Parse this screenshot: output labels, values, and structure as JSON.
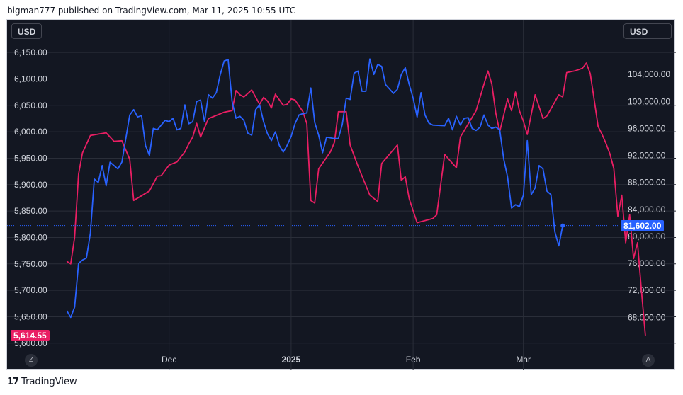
{
  "header": {
    "publisher_line": "bigman777 published on TradingView.com, Mar 11, 2025 10:55 UTC"
  },
  "footer": {
    "logo_mark": "17",
    "brand": "TradingView"
  },
  "left_scale": {
    "currency": "USD",
    "last_price_label": "5,614.55"
  },
  "right_scale": {
    "currency": "USD",
    "last_price_label": "81,602.00"
  },
  "corner_buttons": {
    "left": "Z",
    "right": "A"
  },
  "colors": {
    "background": "#131722",
    "grid": "#2a2e39",
    "axis_text": "#d1d4dc",
    "sp500": "#e91e63",
    "btc": "#2962ff",
    "last_price_line": "#2962ff"
  },
  "chart_data": {
    "type": "line",
    "x_tick_labels": [
      "Dec",
      "2025",
      "Feb",
      "Mar"
    ],
    "x_tick_dates": [
      "2024-12-01",
      "2025-01-01",
      "2025-02-01",
      "2025-03-01"
    ],
    "x_range": [
      "2024-11-01",
      "2025-03-25"
    ],
    "grid": true,
    "left_axis": {
      "ylim": [
        5585,
        6185
      ],
      "ticks": [
        5600,
        5650,
        5700,
        5750,
        5800,
        5850,
        5900,
        5950,
        6000,
        6050,
        6100,
        6150
      ],
      "tick_labels": [
        "5,600.00",
        "5,650.00",
        "5,700.00",
        "5,750.00",
        "5,800.00",
        "5,850.00",
        "5,900.00",
        "5,950.00",
        "6,000.00",
        "6,050.00",
        "6,100.00",
        "6,150.00"
      ]
    },
    "right_axis": {
      "ylim": [
        63000,
        110000
      ],
      "ticks": [
        68000,
        72000,
        76000,
        80000,
        84000,
        88000,
        92000,
        96000,
        100000,
        104000
      ],
      "tick_labels": [
        "68,000.00",
        "72,000.00",
        "76,000.00",
        "80,000.00",
        "84,000.00",
        "88,000.00",
        "92,000.00",
        "96,000.00",
        "100,000.00",
        "104,000.00"
      ]
    },
    "series": [
      {
        "axis": "left",
        "last_value": 5614.55,
        "points": [
          [
            "2024-11-05",
            5755
          ],
          [
            "2024-11-06",
            5750
          ],
          [
            "2024-11-07",
            5800
          ],
          [
            "2024-11-08",
            5920
          ],
          [
            "2024-11-09",
            5960
          ],
          [
            "2024-11-11",
            5993
          ],
          [
            "2024-11-15",
            5998
          ],
          [
            "2024-11-17",
            5982
          ],
          [
            "2024-11-19",
            5983
          ],
          [
            "2024-11-21",
            5948
          ],
          [
            "2024-11-22",
            5870
          ],
          [
            "2024-11-26",
            5888
          ],
          [
            "2024-11-28",
            5916
          ],
          [
            "2024-11-29",
            5917
          ],
          [
            "2024-12-01",
            5937
          ],
          [
            "2024-12-03",
            5943
          ],
          [
            "2024-12-05",
            5962
          ],
          [
            "2024-12-06",
            5977
          ],
          [
            "2024-12-07",
            5990
          ],
          [
            "2024-12-08",
            6016
          ],
          [
            "2024-12-09",
            5990
          ],
          [
            "2024-12-11",
            6025
          ],
          [
            "2024-12-13",
            6031
          ],
          [
            "2024-12-15",
            6037
          ],
          [
            "2024-12-17",
            6040
          ],
          [
            "2024-12-18",
            6078
          ],
          [
            "2024-12-19",
            6070
          ],
          [
            "2024-12-20",
            6066
          ],
          [
            "2024-12-22",
            6079
          ],
          [
            "2024-12-24",
            6052
          ],
          [
            "2024-12-25",
            6065
          ],
          [
            "2024-12-26",
            6058
          ],
          [
            "2024-12-27",
            6045
          ],
          [
            "2024-12-28",
            6071
          ],
          [
            "2024-12-30",
            6050
          ],
          [
            "2024-12-31",
            6052
          ],
          [
            "2025-01-01",
            6062
          ],
          [
            "2025-01-02",
            6060
          ],
          [
            "2025-01-04",
            6038
          ],
          [
            "2025-01-05",
            6015
          ],
          [
            "2025-01-06",
            5870
          ],
          [
            "2025-01-07",
            5865
          ],
          [
            "2025-01-08",
            5930
          ],
          [
            "2025-01-11",
            5962
          ],
          [
            "2025-01-12",
            5980
          ],
          [
            "2025-01-13",
            6038
          ],
          [
            "2025-01-15",
            6038
          ],
          [
            "2025-01-16",
            5975
          ],
          [
            "2025-01-18",
            5935
          ],
          [
            "2025-01-21",
            5880
          ],
          [
            "2025-01-23",
            5868
          ],
          [
            "2025-01-24",
            5940
          ],
          [
            "2025-01-28",
            5975
          ],
          [
            "2025-01-29",
            5908
          ],
          [
            "2025-01-30",
            5915
          ],
          [
            "2025-01-31",
            5873
          ],
          [
            "2025-02-02",
            5828
          ],
          [
            "2025-02-06",
            5836
          ],
          [
            "2025-02-07",
            5843
          ],
          [
            "2025-02-09",
            5957
          ],
          [
            "2025-02-11",
            5940
          ],
          [
            "2025-02-12",
            5932
          ],
          [
            "2025-02-13",
            5990
          ],
          [
            "2025-02-17",
            6040
          ],
          [
            "2025-02-19",
            6090
          ],
          [
            "2025-02-20",
            6115
          ],
          [
            "2025-02-21",
            6090
          ],
          [
            "2025-02-22",
            6035
          ],
          [
            "2025-02-23",
            6000
          ],
          [
            "2025-02-25",
            6062
          ],
          [
            "2025-02-26",
            6040
          ],
          [
            "2025-02-27",
            6075
          ],
          [
            "2025-02-28",
            6040
          ],
          [
            "2025-03-01",
            6020
          ],
          [
            "2025-03-02",
            5995
          ],
          [
            "2025-03-04",
            6070
          ],
          [
            "2025-03-06",
            6025
          ],
          [
            "2025-03-07",
            6030
          ],
          [
            "2025-03-10",
            6070
          ],
          [
            "2025-03-11",
            6066
          ],
          [
            "2025-03-12",
            6112
          ],
          [
            "2025-03-14",
            6115
          ],
          [
            "2025-03-16",
            6120
          ],
          [
            "2025-03-17",
            6130
          ],
          [
            "2025-03-18",
            6110
          ],
          [
            "2025-03-19",
            6060
          ],
          [
            "2025-03-20",
            6010
          ],
          [
            "2025-03-21",
            5995
          ],
          [
            "2025-03-22",
            5978
          ],
          [
            "2025-03-23",
            5958
          ],
          [
            "2025-03-24",
            5930
          ],
          [
            "2025-03-25",
            5840
          ],
          [
            "2025-03-26",
            5880
          ],
          [
            "2025-03-27",
            5790
          ],
          [
            "2025-03-28",
            5843
          ],
          [
            "2025-03-29",
            5760
          ],
          [
            "2025-03-30",
            5790
          ],
          [
            "2025-03-31",
            5700
          ],
          [
            "2025-04-01",
            5614.55
          ]
        ]
      },
      {
        "axis": "right",
        "last_value": 81602,
        "points": [
          [
            "2024-11-05",
            69000
          ],
          [
            "2024-11-06",
            68000
          ],
          [
            "2024-11-07",
            69500
          ],
          [
            "2024-11-08",
            76000
          ],
          [
            "2024-11-09",
            76500
          ],
          [
            "2024-11-10",
            76800
          ],
          [
            "2024-11-11",
            80500
          ],
          [
            "2024-11-12",
            88500
          ],
          [
            "2024-11-13",
            88000
          ],
          [
            "2024-11-14",
            90500
          ],
          [
            "2024-11-15",
            87500
          ],
          [
            "2024-11-16",
            91000
          ],
          [
            "2024-11-18",
            90000
          ],
          [
            "2024-11-19",
            91000
          ],
          [
            "2024-11-20",
            94500
          ],
          [
            "2024-11-21",
            98000
          ],
          [
            "2024-11-22",
            98800
          ],
          [
            "2024-11-23",
            97700
          ],
          [
            "2024-11-24",
            97900
          ],
          [
            "2024-11-25",
            93500
          ],
          [
            "2024-11-26",
            92000
          ],
          [
            "2024-11-27",
            96000
          ],
          [
            "2024-11-28",
            95800
          ],
          [
            "2024-11-30",
            97200
          ],
          [
            "2024-12-01",
            97000
          ],
          [
            "2024-12-02",
            97500
          ],
          [
            "2024-12-03",
            95800
          ],
          [
            "2024-12-04",
            96000
          ],
          [
            "2024-12-05",
            99500
          ],
          [
            "2024-12-06",
            96700
          ],
          [
            "2024-12-07",
            97000
          ],
          [
            "2024-12-08",
            100000
          ],
          [
            "2024-12-09",
            100200
          ],
          [
            "2024-12-10",
            97000
          ],
          [
            "2024-12-11",
            101000
          ],
          [
            "2024-12-12",
            100500
          ],
          [
            "2024-12-13",
            101300
          ],
          [
            "2024-12-14",
            104000
          ],
          [
            "2024-12-15",
            106000
          ],
          [
            "2024-12-16",
            106200
          ],
          [
            "2024-12-17",
            100000
          ],
          [
            "2024-12-18",
            97500
          ],
          [
            "2024-12-19",
            97800
          ],
          [
            "2024-12-20",
            97200
          ],
          [
            "2024-12-21",
            95300
          ],
          [
            "2024-12-22",
            95000
          ],
          [
            "2024-12-23",
            98800
          ],
          [
            "2024-12-24",
            99500
          ],
          [
            "2024-12-25",
            97000
          ],
          [
            "2024-12-26",
            95200
          ],
          [
            "2024-12-27",
            94200
          ],
          [
            "2024-12-28",
            95500
          ],
          [
            "2024-12-29",
            93500
          ],
          [
            "2024-12-30",
            92500
          ],
          [
            "2024-12-31",
            93500
          ],
          [
            "2025-01-01",
            94800
          ],
          [
            "2025-01-02",
            96700
          ],
          [
            "2025-01-03",
            98000
          ],
          [
            "2025-01-04",
            98200
          ],
          [
            "2025-01-05",
            98300
          ],
          [
            "2025-01-06",
            102000
          ],
          [
            "2025-01-07",
            96900
          ],
          [
            "2025-01-08",
            95000
          ],
          [
            "2025-01-09",
            92400
          ],
          [
            "2025-01-10",
            94700
          ],
          [
            "2025-01-12",
            94500
          ],
          [
            "2025-01-13",
            94500
          ],
          [
            "2025-01-14",
            96600
          ],
          [
            "2025-01-15",
            100500
          ],
          [
            "2025-01-16",
            100300
          ],
          [
            "2025-01-17",
            104200
          ],
          [
            "2025-01-18",
            104500
          ],
          [
            "2025-01-19",
            101500
          ],
          [
            "2025-01-20",
            101500
          ],
          [
            "2025-01-21",
            106300
          ],
          [
            "2025-01-22",
            104000
          ],
          [
            "2025-01-23",
            105500
          ],
          [
            "2025-01-24",
            105200
          ],
          [
            "2025-01-25",
            102500
          ],
          [
            "2025-01-27",
            101200
          ],
          [
            "2025-01-28",
            101800
          ],
          [
            "2025-01-29",
            104000
          ],
          [
            "2025-01-30",
            105000
          ],
          [
            "2025-01-31",
            102500
          ],
          [
            "2025-02-01",
            100500
          ],
          [
            "2025-02-02",
            97700
          ],
          [
            "2025-02-03",
            101300
          ],
          [
            "2025-02-04",
            98000
          ],
          [
            "2025-02-05",
            96800
          ],
          [
            "2025-02-06",
            96500
          ],
          [
            "2025-02-09",
            96400
          ],
          [
            "2025-02-10",
            97500
          ],
          [
            "2025-02-11",
            95800
          ],
          [
            "2025-02-12",
            97800
          ],
          [
            "2025-02-13",
            96500
          ],
          [
            "2025-02-14",
            97500
          ],
          [
            "2025-02-15",
            97600
          ],
          [
            "2025-02-16",
            96000
          ],
          [
            "2025-02-17",
            95700
          ],
          [
            "2025-02-18",
            96200
          ],
          [
            "2025-02-19",
            98000
          ],
          [
            "2025-02-20",
            96500
          ],
          [
            "2025-02-21",
            96000
          ],
          [
            "2025-02-22",
            96200
          ],
          [
            "2025-02-23",
            95800
          ],
          [
            "2025-02-24",
            91500
          ],
          [
            "2025-02-25",
            88800
          ],
          [
            "2025-02-26",
            84200
          ],
          [
            "2025-02-27",
            84700
          ],
          [
            "2025-02-28",
            84400
          ],
          [
            "2025-03-01",
            86100
          ],
          [
            "2025-03-02",
            94200
          ],
          [
            "2025-03-03",
            86200
          ],
          [
            "2025-03-04",
            87200
          ],
          [
            "2025-03-05",
            90500
          ],
          [
            "2025-03-06",
            90000
          ],
          [
            "2025-03-07",
            86700
          ],
          [
            "2025-03-08",
            86200
          ],
          [
            "2025-03-09",
            80700
          ],
          [
            "2025-03-10",
            78600
          ],
          [
            "2025-03-11",
            81602
          ]
        ]
      }
    ]
  }
}
